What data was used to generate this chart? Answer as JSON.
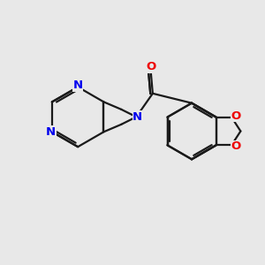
{
  "background_color": "#e8e8e8",
  "bond_color": "#1a1a1a",
  "N_color": "#0000ee",
  "O_color": "#ee0000",
  "bond_width": 1.6,
  "figsize": [
    3.0,
    3.0
  ],
  "dpi": 100,
  "xlim": [
    0,
    10
  ],
  "ylim": [
    0,
    10
  ]
}
